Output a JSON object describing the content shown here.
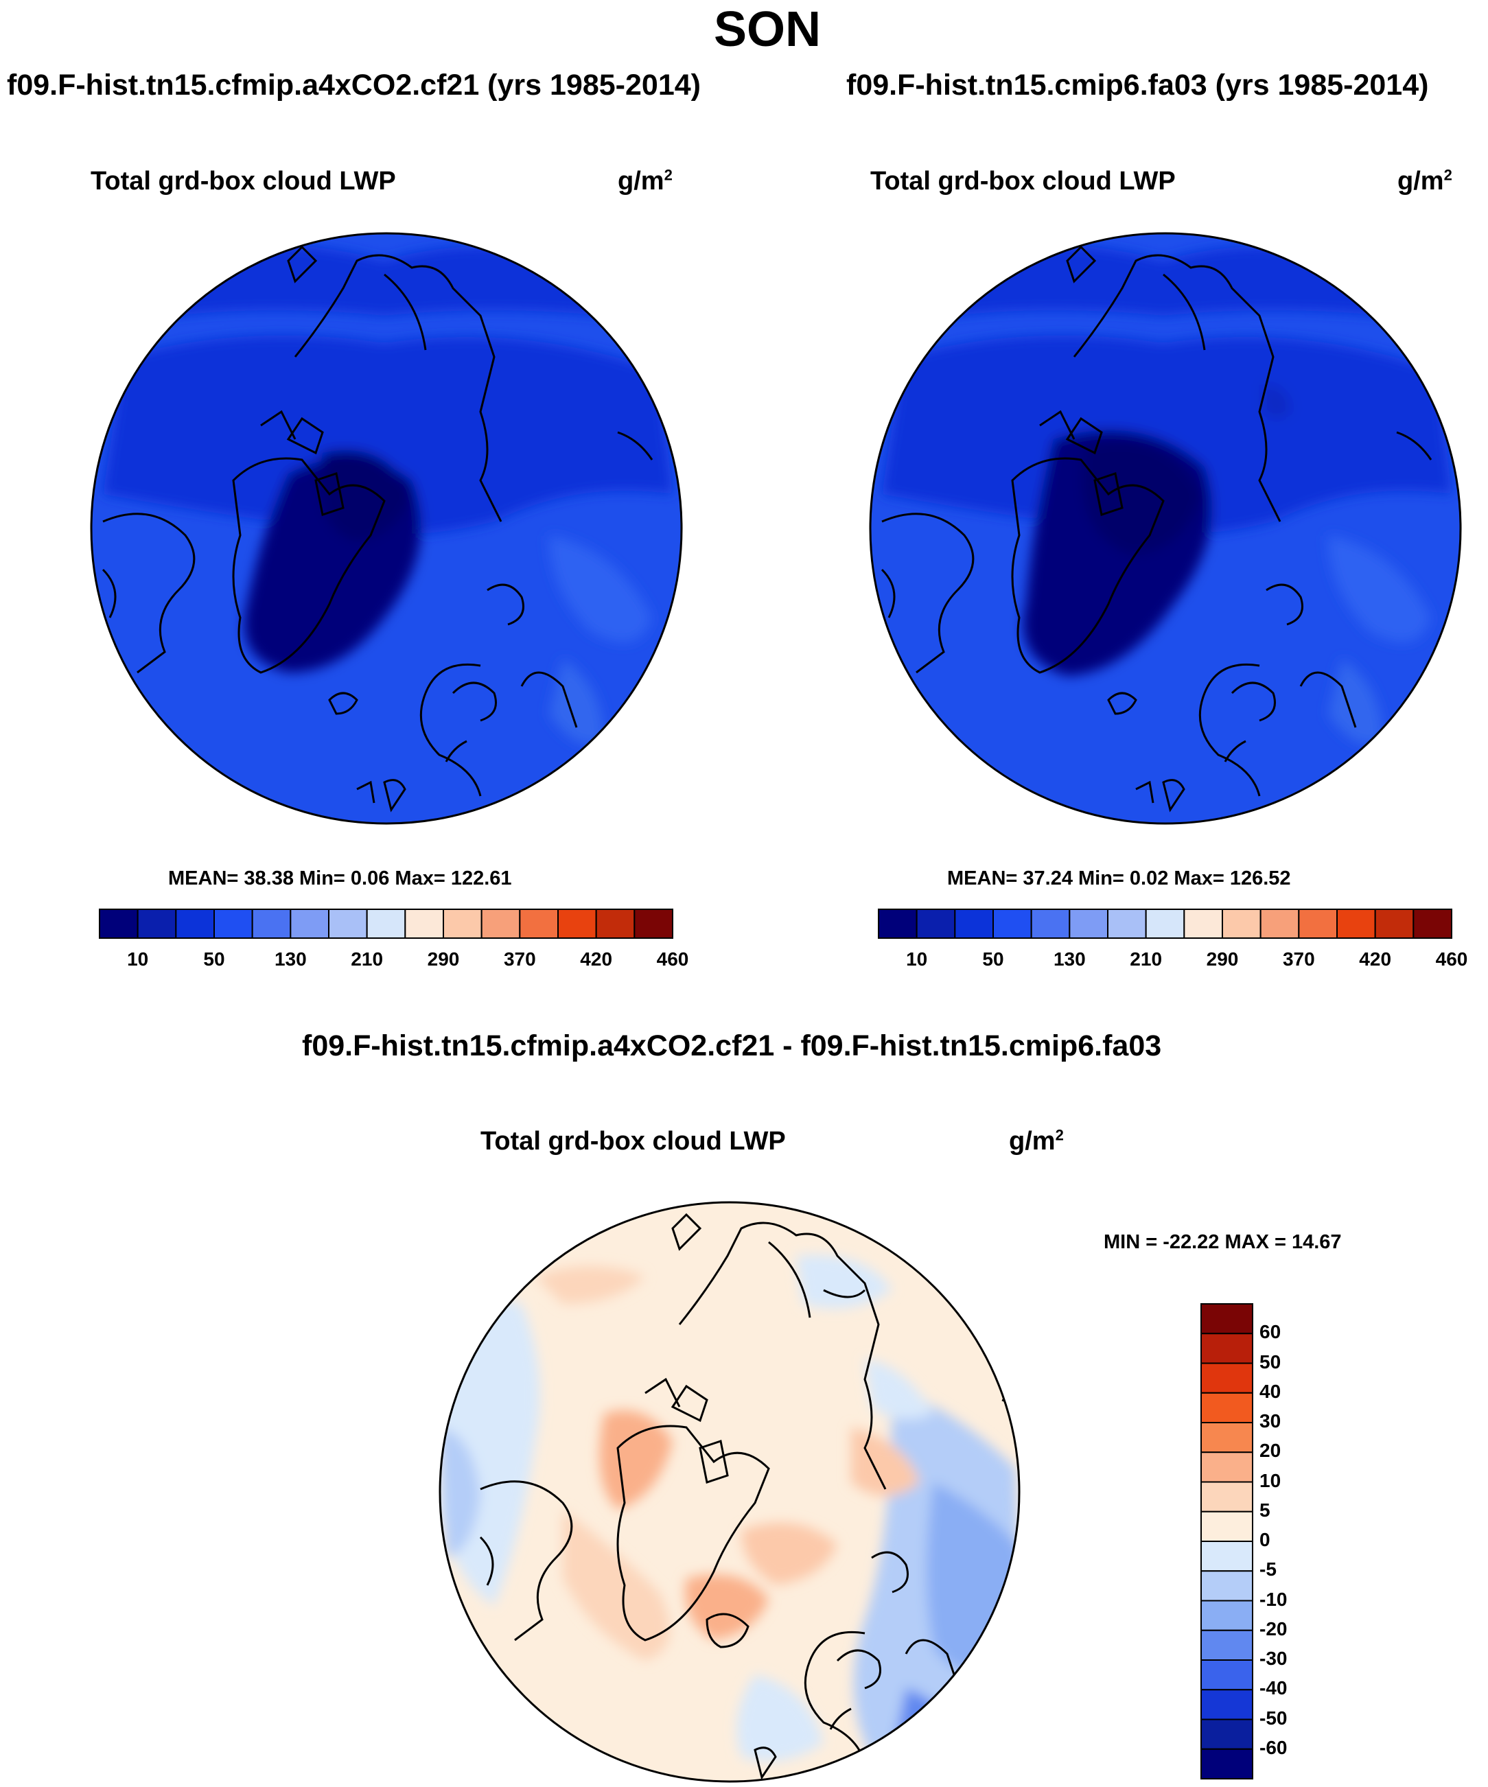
{
  "figure": {
    "title": "SON",
    "top_left": {
      "case_title": "f09.F-hist.tn15.cfmip.a4xCO2.cf21 (yrs 1985-2014)",
      "var_title": "Total grd-box cloud LWP",
      "units": "g/m",
      "units_exp": "2",
      "stats": "MEAN=  38.38  Min=   0.06  Max= 122.61"
    },
    "top_right": {
      "case_title": "f09.F-hist.tn15.cmip6.fa03 (yrs 1985-2014)",
      "var_title": "Total grd-box cloud LWP",
      "units": "g/m",
      "units_exp": "2",
      "stats": "MEAN=  37.24  Min=   0.02  Max= 126.52"
    },
    "bottom": {
      "case_title": "f09.F-hist.tn15.cfmip.a4xCO2.cf21 - f09.F-hist.tn15.cmip6.fa03",
      "var_title": "Total grd-box cloud LWP",
      "units": "g/m",
      "units_exp": "2",
      "stats": "MIN = -22.22 MAX =  14.67"
    }
  },
  "chart_data": [
    {
      "type": "heatmap",
      "projection": "north-polar-stereographic",
      "title": "Total grd-box cloud LWP",
      "units": "g/m2",
      "case": "f09.F-hist.tn15.cfmip.a4xCO2.cf21 (yrs 1985-2014)",
      "stats": {
        "mean": 38.38,
        "min": 0.06,
        "max": 122.61
      },
      "colorbar": {
        "orientation": "horizontal",
        "tick_labels": [
          "10",
          "50",
          "130",
          "210",
          "290",
          "370",
          "420",
          "460"
        ],
        "colors": [
          "#00007a",
          "#0a1fad",
          "#0c33d9",
          "#1f4ff2",
          "#4a72f2",
          "#7e9cf5",
          "#a9c0f7",
          "#d6e6fa",
          "#fce8d8",
          "#fcc9aa",
          "#f7a07a",
          "#f27040",
          "#e8420f",
          "#c22c0a",
          "#7a0505"
        ]
      }
    },
    {
      "type": "heatmap",
      "projection": "north-polar-stereographic",
      "title": "Total grd-box cloud LWP",
      "units": "g/m2",
      "case": "f09.F-hist.tn15.cmip6.fa03 (yrs 1985-2014)",
      "stats": {
        "mean": 37.24,
        "min": 0.02,
        "max": 126.52
      },
      "colorbar": {
        "orientation": "horizontal",
        "tick_labels": [
          "10",
          "50",
          "130",
          "210",
          "290",
          "370",
          "420",
          "460"
        ],
        "colors": [
          "#00007a",
          "#0a1fad",
          "#0c33d9",
          "#1f4ff2",
          "#4a72f2",
          "#7e9cf5",
          "#a9c0f7",
          "#d6e6fa",
          "#fce8d8",
          "#fcc9aa",
          "#f7a07a",
          "#f27040",
          "#e8420f",
          "#c22c0a",
          "#7a0505"
        ]
      }
    },
    {
      "type": "heatmap",
      "projection": "north-polar-stereographic",
      "title": "Total grd-box cloud LWP",
      "units": "g/m2",
      "case": "f09.F-hist.tn15.cfmip.a4xCO2.cf21 - f09.F-hist.tn15.cmip6.fa03",
      "stats": {
        "min": -22.22,
        "max": 14.67
      },
      "colorbar": {
        "orientation": "vertical",
        "tick_labels": [
          "60",
          "50",
          "40",
          "30",
          "20",
          "10",
          "5",
          "0",
          "-5",
          "-10",
          "-20",
          "-30",
          "-40",
          "-50",
          "-60"
        ],
        "colors": [
          "#7a0505",
          "#b81f0a",
          "#e0360d",
          "#f25a1f",
          "#f7874f",
          "#fab08a",
          "#fcd6bb",
          "#fdeedd",
          "#d9e9fb",
          "#b4cdf8",
          "#8aaef4",
          "#6088f0",
          "#3a63ec",
          "#1537d6",
          "#0a1f9e",
          "#00007a"
        ]
      }
    }
  ]
}
